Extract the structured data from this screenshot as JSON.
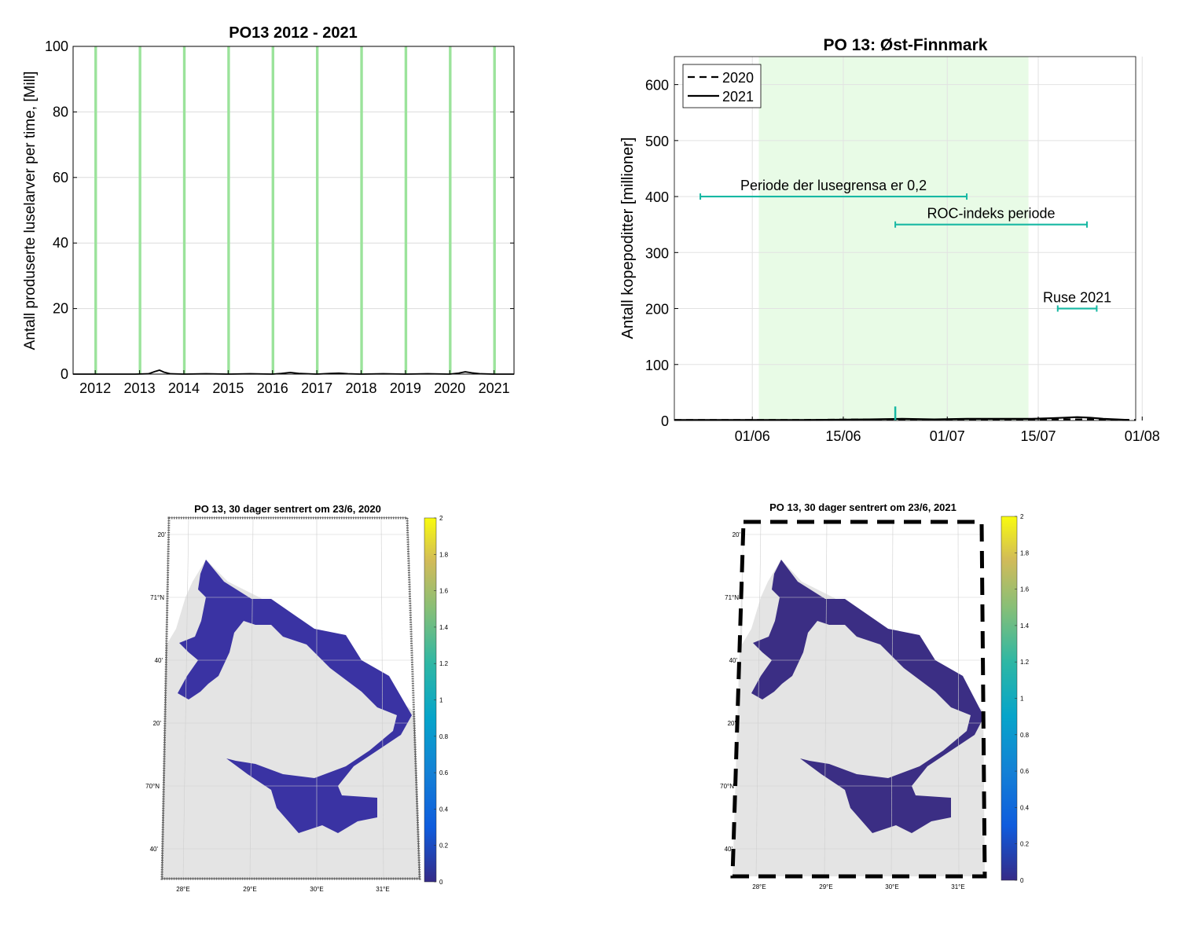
{
  "chart_data": [
    {
      "type": "line",
      "title": "PO13 2012 - 2021",
      "ylabel": "Antall produserte luselarver per time, [Mill]",
      "xlabel": "",
      "xlim": [
        2011.5,
        2021.45
      ],
      "ylim": [
        0,
        100
      ],
      "x_ticks": [
        2012,
        2013,
        2014,
        2015,
        2016,
        2017,
        2018,
        2019,
        2020,
        2021
      ],
      "x_tick_labels": [
        "2012",
        "2013",
        "2014",
        "2015",
        "2016",
        "2017",
        "2018",
        "2019",
        "2020",
        "2021"
      ],
      "y_ticks": [
        0,
        20,
        40,
        60,
        80,
        100
      ],
      "y_tick_labels": [
        "0",
        "20",
        "40",
        "60",
        "80",
        "100"
      ],
      "grid": true,
      "highlight_color": "#9be39b",
      "highlight_spans": [
        [
          2011.98,
          2012.04
        ],
        [
          2012.98,
          2013.04
        ],
        [
          2013.98,
          2014.04
        ],
        [
          2014.98,
          2015.04
        ],
        [
          2015.98,
          2016.04
        ],
        [
          2016.98,
          2017.04
        ],
        [
          2017.98,
          2018.04
        ],
        [
          2018.98,
          2019.04
        ],
        [
          2019.98,
          2020.04
        ],
        [
          2020.98,
          2021.04
        ]
      ],
      "series": [
        {
          "color": "#000000",
          "x": [
            2011.5,
            2012.3,
            2012.9,
            2013.2,
            2013.35,
            2013.45,
            2013.55,
            2013.7,
            2014.0,
            2014.5,
            2015.0,
            2015.5,
            2016.0,
            2016.2,
            2016.4,
            2016.6,
            2017.0,
            2017.3,
            2017.5,
            2017.7,
            2018.0,
            2018.5,
            2019.0,
            2019.5,
            2020.0,
            2020.2,
            2020.35,
            2020.5,
            2020.7,
            2021.0,
            2021.45
          ],
          "y": [
            0,
            0,
            0,
            0.1,
            0.8,
            1.2,
            0.6,
            0.1,
            0,
            0.1,
            0,
            0.1,
            0,
            0.2,
            0.5,
            0.2,
            0,
            0.2,
            0.3,
            0.1,
            0,
            0.1,
            0,
            0.1,
            0,
            0.3,
            0.7,
            0.4,
            0.1,
            0,
            0
          ]
        }
      ]
    },
    {
      "type": "line",
      "title": "PO 13: Øst-Finnmark",
      "ylabel": "Antall kopepoditter [millioner]",
      "xlabel": "",
      "xlim": [
        0,
        71
      ],
      "ylim": [
        0,
        650
      ],
      "x_ticks": [
        12,
        26,
        42,
        56,
        72
      ],
      "x_tick_labels": [
        "01/06",
        "15/06",
        "01/07",
        "15/07",
        "01/08"
      ],
      "y_ticks": [
        0,
        100,
        200,
        300,
        400,
        500,
        600
      ],
      "y_tick_labels": [
        "0",
        "100",
        "200",
        "300",
        "400",
        "500",
        "600"
      ],
      "grid": true,
      "legend": {
        "placement": "top-left",
        "entries": [
          {
            "label": "2020",
            "style": "dashed"
          },
          {
            "label": "2021",
            "style": "solid"
          }
        ]
      },
      "shaded_period": {
        "x_start": 13,
        "x_end": 54.5,
        "color": "#e8fbe6"
      },
      "annotations": [
        {
          "text": "Periode der lusegrensa er 0,2",
          "x_start": 4,
          "x_end": 45,
          "y": 400
        },
        {
          "text": "ROC-indeks periode",
          "x_start": 34,
          "x_end": 63.5,
          "y": 350
        },
        {
          "text": "Ruse 2021",
          "x_start": 59,
          "x_end": 65,
          "y": 200
        }
      ],
      "marker": {
        "x": 34,
        "y_start": 0,
        "y_end": 25
      },
      "annotation_color": "#17b8a3",
      "series": [
        {
          "name": "2020",
          "style": "dashed",
          "color": "#000000",
          "x": [
            0,
            10,
            20,
            30,
            40,
            50,
            55,
            60,
            65,
            70,
            71
          ],
          "y": [
            1,
            1,
            1,
            2,
            2,
            2,
            2,
            2,
            2,
            1,
            1
          ]
        },
        {
          "name": "2021",
          "style": "solid",
          "color": "#000000",
          "x": [
            0,
            10,
            20,
            30,
            35,
            40,
            45,
            50,
            55,
            58,
            60,
            62,
            64,
            66,
            68,
            70
          ],
          "y": [
            1,
            1,
            1,
            2,
            3,
            2,
            3,
            3,
            3,
            4,
            5,
            6,
            5,
            3,
            2,
            1
          ]
        }
      ]
    },
    {
      "type": "heatmap",
      "title": "PO 13, 30 dager sentrert om 23/6, 2020",
      "colorbar": {
        "min": 0,
        "max": 2,
        "ticks": [
          "0",
          "0.2",
          "0.4",
          "0.6",
          "0.8",
          "1",
          "1.2",
          "1.4",
          "1.6",
          "1.8",
          "2"
        ]
      },
      "lat_labels": [
        "20'",
        "71°N",
        "40'",
        "20'",
        "70°N",
        "40'"
      ],
      "lon_labels": [
        "28°E",
        "29°E",
        "30°E",
        "31°E"
      ],
      "fill_color": "#3a33a3",
      "frame": "thin"
    },
    {
      "type": "heatmap",
      "title": "PO 13, 30 dager sentrert om 23/6, 2021",
      "colorbar": {
        "min": 0,
        "max": 2,
        "ticks": [
          "0",
          "0.2",
          "0.4",
          "0.6",
          "0.8",
          "1",
          "1.2",
          "1.4",
          "1.6",
          "1.8",
          "2"
        ]
      },
      "lat_labels": [
        "20'",
        "71°N",
        "40'",
        "20'",
        "70°N",
        "40'"
      ],
      "lon_labels": [
        "28°E",
        "29°E",
        "30°E",
        "31°E"
      ],
      "fill_color": "#3b2e84",
      "frame": "dashed"
    }
  ]
}
